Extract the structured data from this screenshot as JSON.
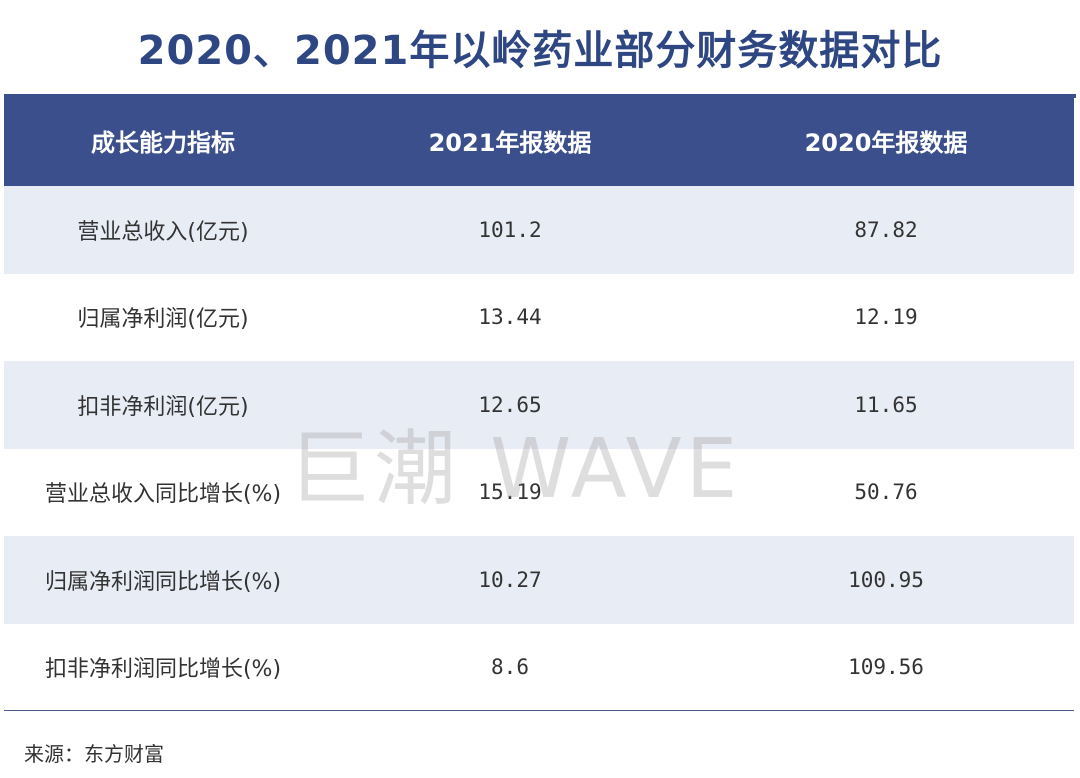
{
  "title": "2020、2021年以岭药业部分财务数据对比",
  "table": {
    "headers": [
      "成长能力指标",
      "2021年报数据",
      "2020年报数据"
    ],
    "rows": [
      {
        "label": "营业总收入(亿元)",
        "v2021": "101.2",
        "v2020": "87.82"
      },
      {
        "label": "归属净利润(亿元)",
        "v2021": "13.44",
        "v2020": "12.19"
      },
      {
        "label": "扣非净利润(亿元)",
        "v2021": "12.65",
        "v2020": "11.65"
      },
      {
        "label": "营业总收入同比增长(%)",
        "v2021": "15.19",
        "v2020": "50.76"
      },
      {
        "label": "归属净利润同比增长(%)",
        "v2021": "10.27",
        "v2020": "100.95"
      },
      {
        "label": "扣非净利润同比增长(%)",
        "v2021": "8.6",
        "v2020": "109.56"
      }
    ]
  },
  "source": "来源：东方财富",
  "watermark": "巨潮 WAVE",
  "colors": {
    "title": "#2e4682",
    "header_bg": "#3b4f8c",
    "alt_row_bg": "#e8ecf5"
  }
}
